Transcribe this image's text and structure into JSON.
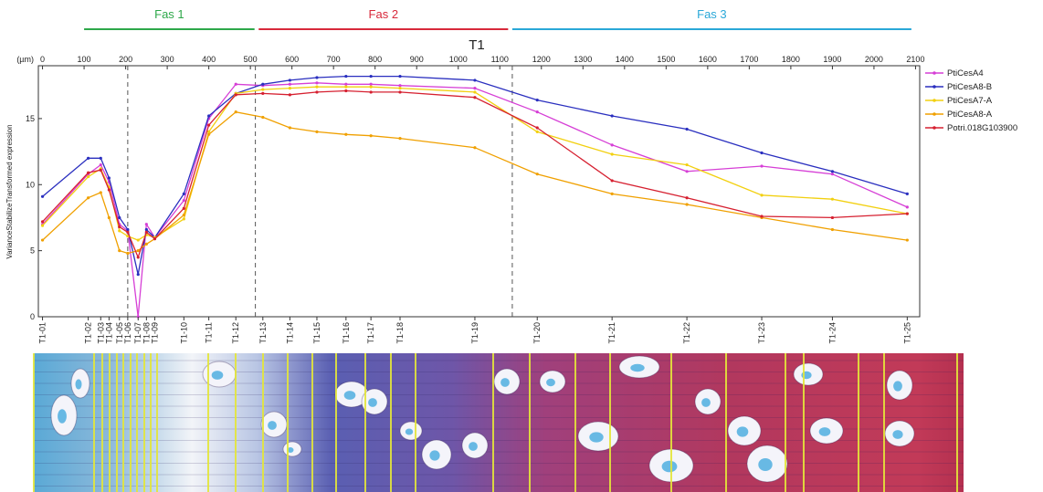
{
  "phases": [
    {
      "label": "Fas 1",
      "color": "#2ea84a",
      "from_um": 100,
      "to_um": 510
    },
    {
      "label": "Fas 2",
      "color": "#d8293b",
      "from_um": 520,
      "to_um": 1120
    },
    {
      "label": "Fas 3",
      "color": "#2aa8d8",
      "from_um": 1130,
      "to_um": 2090
    }
  ],
  "chart_data": {
    "type": "line",
    "title": "T1",
    "top_axis_unit": "(µm)",
    "top_axis_ticks": [
      0,
      100,
      200,
      300,
      400,
      500,
      600,
      700,
      800,
      900,
      1000,
      1100,
      1200,
      1300,
      1400,
      1500,
      1600,
      1700,
      1800,
      1900,
      2000,
      2100
    ],
    "xlim": [
      -10,
      2110
    ],
    "ylabel": "VarianceStabilizeTransformed expression",
    "ylim": [
      0,
      19
    ],
    "yticks": [
      0,
      5,
      10,
      15
    ],
    "phase_boundaries_um": [
      205,
      512,
      1130
    ],
    "grid": false,
    "legend_position": "right",
    "samples": [
      "T1-01",
      "T1-02",
      "T1-03",
      "T1-04",
      "T1-05",
      "T1-06",
      "T1-07",
      "T1-08",
      "T1-09",
      "T1-10",
      "T1-11",
      "T1-12",
      "T1-13",
      "T1-14",
      "T1-15",
      "T1-16",
      "T1-17",
      "T1-18",
      "T1-19",
      "T1-20",
      "T1-21",
      "T1-22",
      "T1-23",
      "T1-24",
      "T1-25"
    ],
    "x": [
      0,
      110,
      140,
      160,
      185,
      205,
      230,
      250,
      270,
      340,
      400,
      465,
      530,
      595,
      660,
      730,
      790,
      860,
      1040,
      1190,
      1370,
      1550,
      1730,
      1900,
      2080
    ],
    "series": [
      {
        "name": "PtiCesA4",
        "color": "#d63fd6",
        "values": [
          7.0,
          10.8,
          11.5,
          10.2,
          7.0,
          6.5,
          0.0,
          7.0,
          6.0,
          8.8,
          15.0,
          17.6,
          17.5,
          17.6,
          17.7,
          17.6,
          17.6,
          17.5,
          17.3,
          15.5,
          13.0,
          11.0,
          11.4,
          10.8,
          8.3
        ]
      },
      {
        "name": "PtiCesA8-B",
        "color": "#2a2fbf",
        "values": [
          9.1,
          12.0,
          12.0,
          10.5,
          7.5,
          6.6,
          3.2,
          6.6,
          6.0,
          9.3,
          15.2,
          16.9,
          17.6,
          17.9,
          18.1,
          18.2,
          18.2,
          18.2,
          17.9,
          16.4,
          15.2,
          14.2,
          12.4,
          11.0,
          9.3
        ]
      },
      {
        "name": "PtiCesA7-A",
        "color": "#f2d010",
        "values": [
          6.9,
          10.6,
          11.2,
          9.8,
          6.5,
          6.1,
          5.8,
          6.2,
          6.0,
          7.4,
          14.0,
          16.9,
          17.2,
          17.3,
          17.4,
          17.4,
          17.4,
          17.3,
          17.0,
          14.0,
          12.3,
          11.5,
          9.2,
          8.9,
          7.8
        ]
      },
      {
        "name": "PtiCesA8-A",
        "color": "#f0a000",
        "values": [
          5.8,
          9.0,
          9.4,
          7.5,
          5.0,
          4.8,
          5.0,
          5.5,
          5.9,
          7.7,
          13.8,
          15.5,
          15.1,
          14.3,
          14.0,
          13.8,
          13.7,
          13.5,
          12.8,
          10.8,
          9.3,
          8.5,
          7.5,
          6.6,
          5.8
        ]
      },
      {
        "name": "Potri.018G103900",
        "color": "#d62030",
        "values": [
          7.2,
          10.9,
          11.1,
          9.6,
          6.8,
          6.4,
          4.5,
          6.4,
          5.9,
          8.2,
          14.5,
          16.8,
          16.9,
          16.8,
          17.0,
          17.1,
          17.0,
          17.0,
          16.6,
          14.3,
          10.3,
          9.0,
          7.6,
          7.5,
          7.8
        ]
      }
    ]
  }
}
